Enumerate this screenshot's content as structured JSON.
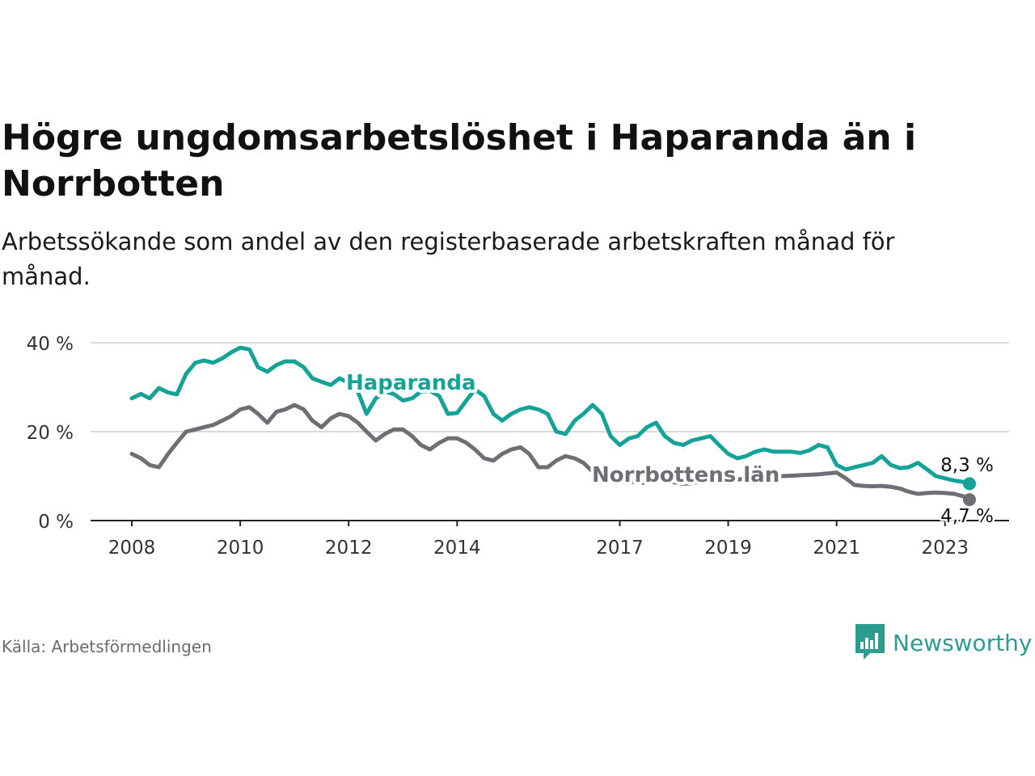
{
  "title": "Högre ungdomsarbetslöshet i Haparanda än i Norrbotten",
  "subtitle": "Arbetssökande som andel av den registerbaserade arbetskraften månad för månad.",
  "source": "Källa: Arbetsförmedlingen",
  "brand": "Newsworthy",
  "colors": {
    "haparanda": "#16a397",
    "norrbotten": "#6e6e75",
    "grid": "#d9d9d9",
    "axis": "#222222",
    "brand": "#2e9b8f"
  },
  "chart_data": {
    "type": "line",
    "title": "Högre ungdomsarbetslöshet i Haparanda än i Norrbotten",
    "xlabel": "",
    "ylabel": "",
    "ylim": [
      0,
      40
    ],
    "xlim": [
      2008,
      2023.6
    ],
    "y_ticks": [
      0,
      20,
      40
    ],
    "y_tick_labels": [
      "0 %",
      "20 %",
      "40 %"
    ],
    "x_ticks": [
      2008,
      2010,
      2012,
      2014,
      2017,
      2019,
      2021,
      2023
    ],
    "x_tick_labels": [
      "2008",
      "2010",
      "2012",
      "2014",
      "2017",
      "2019",
      "2021",
      "2023"
    ],
    "series": [
      {
        "name": "Haparanda",
        "label": "Haparanda",
        "end_label": "8,3 %",
        "x": [
          2008,
          2008.17,
          2008.33,
          2008.5,
          2008.67,
          2008.83,
          2009,
          2009.17,
          2009.33,
          2009.5,
          2009.67,
          2009.83,
          2010,
          2010.17,
          2010.33,
          2010.5,
          2010.67,
          2010.83,
          2011,
          2011.17,
          2011.33,
          2011.5,
          2011.67,
          2011.83,
          2012,
          2012.17,
          2012.33,
          2012.5,
          2012.67,
          2012.83,
          2013,
          2013.17,
          2013.33,
          2013.5,
          2013.67,
          2013.83,
          2014,
          2014.17,
          2014.33,
          2014.5,
          2014.67,
          2014.83,
          2015,
          2015.17,
          2015.33,
          2015.5,
          2015.67,
          2015.83,
          2016,
          2016.17,
          2016.33,
          2016.5,
          2016.67,
          2016.83,
          2017,
          2017.17,
          2017.33,
          2017.5,
          2017.67,
          2017.83,
          2018,
          2018.17,
          2018.33,
          2018.5,
          2018.67,
          2018.83,
          2019,
          2019.17,
          2019.33,
          2019.5,
          2019.67,
          2019.83,
          2020,
          2020.17,
          2020.33,
          2020.5,
          2020.67,
          2020.83,
          2021,
          2021.17,
          2021.33,
          2021.5,
          2021.67,
          2021.83,
          2022,
          2022.17,
          2022.33,
          2022.5,
          2022.67,
          2022.83,
          2023,
          2023.17,
          2023.33,
          2023.45
        ],
        "values": [
          27.5,
          28.5,
          27.5,
          29.8,
          28.8,
          28.4,
          33,
          35.5,
          36,
          35.5,
          36.5,
          37.8,
          38.9,
          38.5,
          34.5,
          33.5,
          35,
          35.8,
          35.8,
          34.5,
          32,
          31.2,
          30.5,
          32,
          31,
          29,
          24,
          27.5,
          29,
          28.5,
          27,
          27.5,
          29,
          29.2,
          28,
          24,
          24.2,
          27,
          29.5,
          28,
          24,
          22.5,
          24,
          25,
          25.5,
          25,
          24,
          20,
          19.5,
          22.5,
          24,
          26,
          24,
          19,
          17,
          18.5,
          19,
          21,
          22,
          19,
          17.5,
          17,
          18,
          18.5,
          19,
          17,
          15,
          14,
          14.5,
          15.5,
          16,
          15.5,
          15.5,
          15.5,
          15.2,
          15.8,
          17,
          16.5,
          12.5,
          11.5,
          12,
          12.5,
          13,
          14.5,
          12.5,
          11.8,
          12,
          13,
          11.5,
          10,
          9.5,
          9,
          8.7,
          8.3
        ]
      },
      {
        "name": "Norrbottens län",
        "label": "Norrbottens län",
        "end_label": "4,7 %",
        "x": [
          2008,
          2008.17,
          2008.33,
          2008.5,
          2008.67,
          2008.83,
          2009,
          2009.17,
          2009.33,
          2009.5,
          2009.67,
          2009.83,
          2010,
          2010.17,
          2010.33,
          2010.5,
          2010.67,
          2010.83,
          2011,
          2011.17,
          2011.33,
          2011.5,
          2011.67,
          2011.83,
          2012,
          2012.17,
          2012.33,
          2012.5,
          2012.67,
          2012.83,
          2013,
          2013.17,
          2013.33,
          2013.5,
          2013.67,
          2013.83,
          2014,
          2014.17,
          2014.33,
          2014.5,
          2014.67,
          2014.83,
          2015,
          2015.17,
          2015.33,
          2015.5,
          2015.67,
          2015.83,
          2016,
          2016.17,
          2016.33,
          2016.5,
          2016.67,
          2016.83,
          2017,
          2017.17,
          2017.33,
          2017.5,
          2017.67,
          2017.83,
          2018,
          2018.17,
          2018.33,
          2018.5,
          2018.67,
          2018.83,
          2019,
          2019.17,
          2019.33,
          2019.5,
          2019.67,
          2019.83,
          2020,
          2020.17,
          2020.33,
          2020.5,
          2020.67,
          2020.83,
          2021,
          2021.17,
          2021.33,
          2021.5,
          2021.67,
          2021.83,
          2022,
          2022.17,
          2022.33,
          2022.5,
          2022.67,
          2022.83,
          2023,
          2023.17,
          2023.33,
          2023.45
        ],
        "values": [
          15,
          14,
          12.5,
          12,
          15,
          17.5,
          20,
          20.5,
          21,
          21.5,
          22.5,
          23.5,
          25,
          25.5,
          24,
          22,
          24.5,
          25,
          26,
          25,
          22.5,
          21,
          23,
          24,
          23.5,
          22,
          20,
          18,
          19.5,
          20.5,
          20.5,
          19,
          17,
          16,
          17.5,
          18.5,
          18.5,
          17.5,
          16,
          14,
          13.5,
          15,
          16,
          16.5,
          15,
          12,
          12,
          13.5,
          14.5,
          14,
          13,
          11,
          10,
          9.5,
          9,
          8.8,
          8.5,
          8.5,
          9,
          9,
          8.6,
          8.3,
          8.4,
          8.7,
          9.2,
          9.5,
          9.4,
          9.2,
          9.5,
          9.7,
          9.8,
          9.9,
          10,
          10.1,
          10.2,
          10.3,
          10.4,
          10.6,
          10.8,
          9.5,
          8,
          7.8,
          7.7,
          7.8,
          7.6,
          7.2,
          6.5,
          6,
          6.2,
          6.3,
          6.2,
          6,
          5.5,
          4.7
        ]
      }
    ]
  }
}
